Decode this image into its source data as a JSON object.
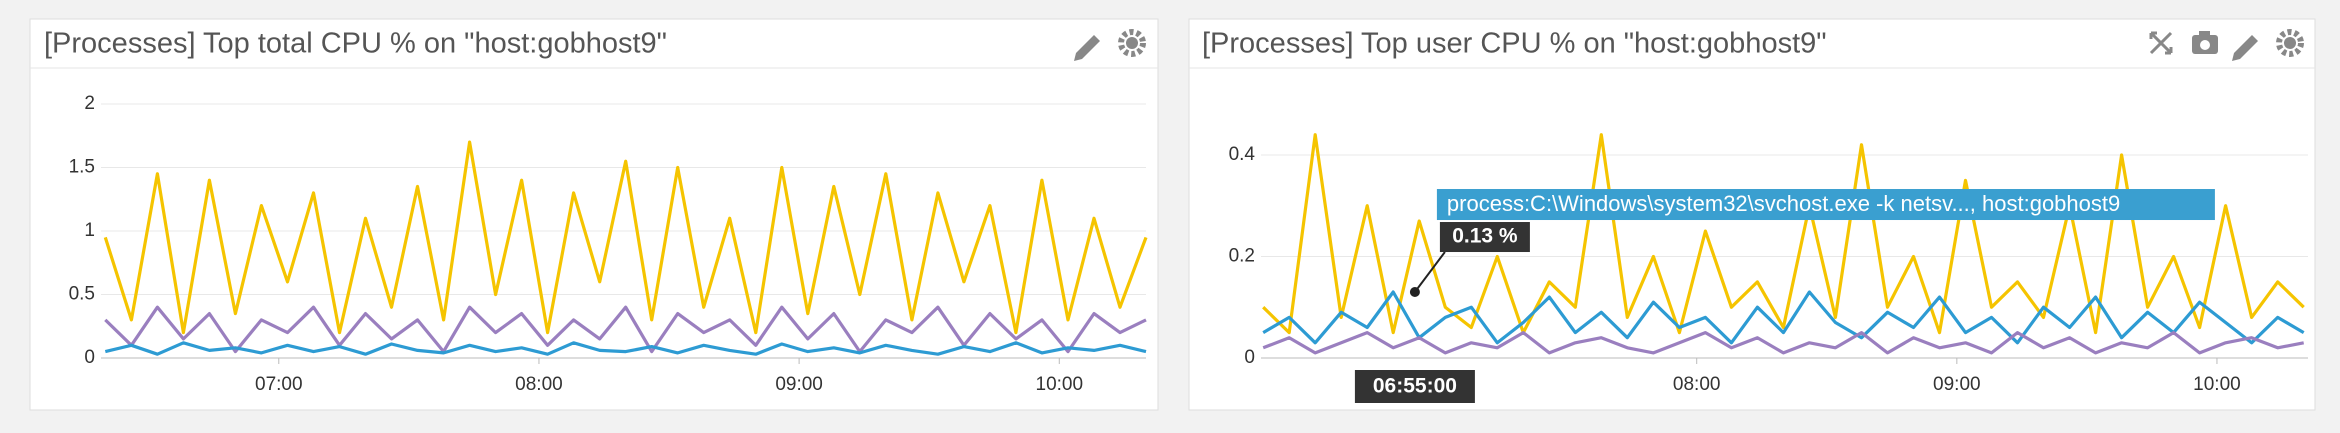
{
  "chart_data": [
    {
      "type": "line",
      "title": "[Processes] Top total CPU % on \"host:gobhost9\"",
      "x": [
        380,
        386,
        392,
        398,
        404,
        410,
        416,
        422,
        428,
        434,
        440,
        446,
        452,
        458,
        464,
        470,
        476,
        482,
        488,
        494,
        500,
        506,
        512,
        518,
        524,
        530,
        536,
        542,
        548,
        554,
        560,
        566,
        572,
        578,
        584,
        590,
        596,
        602,
        608,
        614,
        620
      ],
      "xlim": [
        379,
        620
      ],
      "xticks": [
        {
          "value": 420,
          "label": "07:00"
        },
        {
          "value": 480,
          "label": "08:00"
        },
        {
          "value": 540,
          "label": "09:00"
        },
        {
          "value": 600,
          "label": "10:00"
        }
      ],
      "ylim": [
        0,
        2
      ],
      "yticks": [
        0,
        0.5,
        1,
        1.5,
        2
      ],
      "grid": true,
      "series": [
        {
          "color": "#f5c400",
          "values": [
            0.95,
            0.3,
            1.45,
            0.2,
            1.4,
            0.35,
            1.2,
            0.6,
            1.3,
            0.2,
            1.1,
            0.4,
            1.35,
            0.3,
            1.7,
            0.5,
            1.4,
            0.2,
            1.3,
            0.6,
            1.55,
            0.3,
            1.5,
            0.4,
            1.1,
            0.2,
            1.5,
            0.35,
            1.35,
            0.5,
            1.45,
            0.3,
            1.3,
            0.6,
            1.2,
            0.2,
            1.4,
            0.3,
            1.1,
            0.4,
            0.95
          ]
        },
        {
          "color": "#9a7fbf",
          "values": [
            0.3,
            0.1,
            0.4,
            0.15,
            0.35,
            0.05,
            0.3,
            0.2,
            0.4,
            0.1,
            0.35,
            0.15,
            0.3,
            0.05,
            0.4,
            0.2,
            0.35,
            0.1,
            0.3,
            0.15,
            0.4,
            0.05,
            0.35,
            0.2,
            0.3,
            0.1,
            0.4,
            0.15,
            0.35,
            0.05,
            0.3,
            0.2,
            0.4,
            0.1,
            0.35,
            0.15,
            0.3,
            0.05,
            0.35,
            0.2,
            0.3
          ]
        },
        {
          "color": "#2d9bd3",
          "values": [
            0.05,
            0.1,
            0.03,
            0.12,
            0.06,
            0.08,
            0.04,
            0.1,
            0.05,
            0.09,
            0.03,
            0.11,
            0.06,
            0.04,
            0.1,
            0.05,
            0.08,
            0.03,
            0.12,
            0.06,
            0.05,
            0.09,
            0.04,
            0.1,
            0.06,
            0.03,
            0.11,
            0.05,
            0.08,
            0.04,
            0.1,
            0.06,
            0.03,
            0.09,
            0.05,
            0.12,
            0.04,
            0.08,
            0.06,
            0.1,
            0.05
          ]
        }
      ]
    },
    {
      "type": "line",
      "title": "[Processes] Top user CPU % on \"host:gobhost9\"",
      "x": [
        380,
        386,
        392,
        398,
        404,
        410,
        416,
        422,
        428,
        434,
        440,
        446,
        452,
        458,
        464,
        470,
        476,
        482,
        488,
        494,
        500,
        506,
        512,
        518,
        524,
        530,
        536,
        542,
        548,
        554,
        560,
        566,
        572,
        578,
        584,
        590,
        596,
        602,
        608,
        614,
        620
      ],
      "xlim": [
        379.5,
        621
      ],
      "xticks": [
        {
          "value": 480,
          "label": "08:00"
        },
        {
          "value": 540,
          "label": "09:00"
        },
        {
          "value": 600,
          "label": "10:00"
        }
      ],
      "ylim": [
        0,
        0.53
      ],
      "yticks": [
        0,
        0.2,
        0.4
      ],
      "grid": true,
      "series": [
        {
          "color": "#f5c400",
          "values": [
            0.1,
            0.05,
            0.44,
            0.08,
            0.3,
            0.05,
            0.27,
            0.1,
            0.06,
            0.2,
            0.05,
            0.15,
            0.1,
            0.44,
            0.08,
            0.2,
            0.05,
            0.25,
            0.1,
            0.15,
            0.06,
            0.3,
            0.08,
            0.42,
            0.1,
            0.2,
            0.05,
            0.35,
            0.1,
            0.15,
            0.08,
            0.3,
            0.05,
            0.4,
            0.1,
            0.2,
            0.06,
            0.3,
            0.08,
            0.15,
            0.1
          ]
        },
        {
          "color": "#2d9bd3",
          "values": [
            0.05,
            0.08,
            0.03,
            0.09,
            0.06,
            0.13,
            0.04,
            0.08,
            0.1,
            0.03,
            0.07,
            0.12,
            0.05,
            0.09,
            0.04,
            0.11,
            0.06,
            0.08,
            0.03,
            0.1,
            0.05,
            0.13,
            0.07,
            0.04,
            0.09,
            0.06,
            0.12,
            0.05,
            0.08,
            0.03,
            0.1,
            0.06,
            0.12,
            0.04,
            0.09,
            0.05,
            0.11,
            0.07,
            0.03,
            0.08,
            0.05
          ]
        },
        {
          "color": "#9a7fbf",
          "values": [
            0.02,
            0.04,
            0.01,
            0.03,
            0.05,
            0.02,
            0.04,
            0.01,
            0.03,
            0.02,
            0.05,
            0.01,
            0.03,
            0.04,
            0.02,
            0.01,
            0.03,
            0.05,
            0.02,
            0.04,
            0.01,
            0.03,
            0.02,
            0.05,
            0.01,
            0.04,
            0.02,
            0.03,
            0.01,
            0.05,
            0.02,
            0.04,
            0.01,
            0.03,
            0.02,
            0.05,
            0.01,
            0.03,
            0.04,
            0.02,
            0.03
          ]
        }
      ],
      "tooltip": {
        "series": "process:C:\\Windows\\system32\\svchost.exe -k netsv..., host:gobhost9",
        "x": {
          "value": 415,
          "label": "06:55:00"
        },
        "y": {
          "value": 0.13,
          "label": "0.13 %"
        }
      }
    }
  ]
}
